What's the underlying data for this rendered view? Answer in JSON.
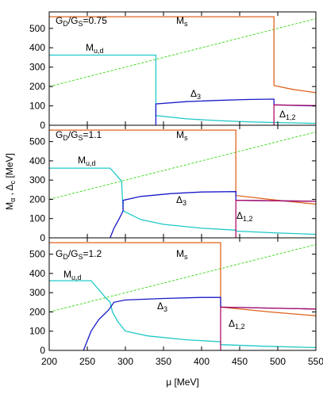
{
  "chart_data": [
    {
      "type": "line",
      "xlim": [
        200,
        550
      ],
      "ylim": [
        0,
        585
      ],
      "xticks": [
        200,
        250,
        300,
        350,
        400,
        450,
        500,
        550
      ],
      "yticks": [
        0,
        100,
        200,
        300,
        400,
        500
      ],
      "annotations": [
        {
          "parts": [
            "G",
            "D",
            "/G",
            "S",
            "=0.75"
          ]
        },
        {
          "parts": [
            "M",
            "s"
          ]
        },
        {
          "parts": [
            "M",
            "u,d"
          ]
        },
        {
          "parts": [
            "Δ",
            "3"
          ]
        },
        {
          "parts": [
            "Δ",
            "1,2"
          ]
        }
      ],
      "series": [
        {
          "color": "#44dd22",
          "dashed": true,
          "x": [
            200,
            550
          ],
          "values": [
            200,
            550
          ]
        },
        {
          "color": "#e0641e",
          "x": [
            200,
            495,
            495,
            520,
            550
          ],
          "values": [
            560,
            560,
            205,
            185,
            168
          ]
        },
        {
          "color": "#20c8c8",
          "x": [
            200,
            340,
            340,
            380,
            420,
            460,
            500,
            550
          ],
          "values": [
            362,
            362,
            50,
            33,
            24,
            18,
            14,
            10
          ]
        },
        {
          "color": "#1a1ac8",
          "x": [
            340,
            340,
            380,
            420,
            460,
            495,
            495,
            550
          ],
          "values": [
            0,
            110,
            122,
            128,
            133,
            135,
            105,
            100
          ]
        },
        {
          "color": "#b0106a",
          "x": [
            495,
            495,
            550
          ],
          "values": [
            0,
            105,
            102
          ]
        }
      ]
    },
    {
      "type": "line",
      "xlim": [
        200,
        550
      ],
      "ylim": [
        0,
        585
      ],
      "xticks": [
        200,
        250,
        300,
        350,
        400,
        450,
        500,
        550
      ],
      "yticks": [
        0,
        100,
        200,
        300,
        400,
        500
      ],
      "ylabel": [
        "M",
        "α",
        " , Δ",
        "c",
        " [MeV]"
      ],
      "annotations": [
        {
          "parts": [
            "G",
            "D",
            "/G",
            "S",
            "=1.1"
          ]
        },
        {
          "parts": [
            "M",
            "s"
          ]
        },
        {
          "parts": [
            "M",
            "u,d"
          ]
        },
        {
          "parts": [
            "Δ",
            "3"
          ]
        },
        {
          "parts": [
            "Δ",
            "1,2"
          ]
        }
      ],
      "series": [
        {
          "color": "#44dd22",
          "dashed": true,
          "x": [
            200,
            550
          ],
          "values": [
            200,
            550
          ]
        },
        {
          "color": "#e0641e",
          "x": [
            200,
            445,
            445,
            500,
            550
          ],
          "values": [
            560,
            560,
            220,
            195,
            175
          ]
        },
        {
          "color": "#20c8c8",
          "x": [
            200,
            280,
            295,
            297,
            320,
            350,
            400,
            445,
            445,
            500,
            550
          ],
          "values": [
            362,
            362,
            295,
            140,
            95,
            70,
            50,
            40,
            35,
            25,
            18
          ]
        },
        {
          "color": "#1a1ac8",
          "x": [
            280,
            285,
            292,
            297,
            297,
            320,
            360,
            400,
            445,
            445,
            550
          ],
          "values": [
            0,
            50,
            100,
            140,
            195,
            215,
            230,
            238,
            240,
            195,
            190
          ]
        },
        {
          "color": "#b0106a",
          "x": [
            445,
            445,
            550
          ],
          "values": [
            0,
            195,
            190
          ]
        }
      ]
    },
    {
      "type": "line",
      "xlim": [
        200,
        550
      ],
      "ylim": [
        0,
        585
      ],
      "xticks": [
        200,
        250,
        300,
        350,
        400,
        450,
        500,
        550
      ],
      "yticks": [
        0,
        100,
        200,
        300,
        400,
        500
      ],
      "xlabel": "μ [MeV]",
      "annotations": [
        {
          "parts": [
            "G",
            "D",
            "/G",
            "S",
            "=1.2"
          ]
        },
        {
          "parts": [
            "M",
            "s"
          ]
        },
        {
          "parts": [
            "M",
            "u,d"
          ]
        },
        {
          "parts": [
            "Δ",
            "3"
          ]
        },
        {
          "parts": [
            "Δ",
            "1,2"
          ]
        }
      ],
      "series": [
        {
          "color": "#44dd22",
          "dashed": true,
          "x": [
            200,
            550
          ],
          "values": [
            200,
            550
          ]
        },
        {
          "color": "#e0641e",
          "x": [
            200,
            425,
            425,
            490,
            550
          ],
          "values": [
            560,
            560,
            225,
            200,
            180
          ]
        },
        {
          "color": "#20c8c8",
          "x": [
            200,
            255,
            275,
            280,
            283,
            290,
            300,
            330,
            380,
            425,
            425,
            480,
            550
          ],
          "values": [
            362,
            362,
            270,
            250,
            200,
            150,
            100,
            75,
            55,
            45,
            30,
            22,
            15
          ]
        },
        {
          "color": "#1a1ac8",
          "x": [
            245,
            255,
            265,
            278,
            285,
            300,
            350,
            400,
            425,
            425,
            550
          ],
          "values": [
            0,
            100,
            160,
            210,
            250,
            262,
            270,
            275,
            275,
            225,
            215
          ]
        },
        {
          "color": "#b0106a",
          "x": [
            425,
            425,
            550
          ],
          "values": [
            0,
            225,
            215
          ]
        }
      ]
    }
  ]
}
